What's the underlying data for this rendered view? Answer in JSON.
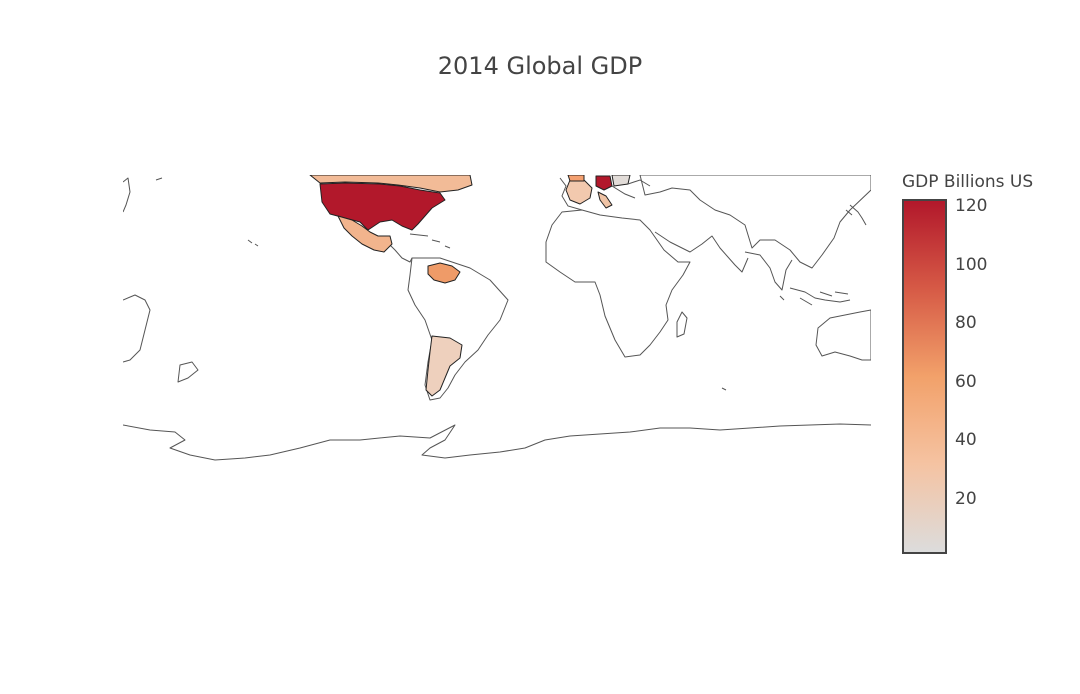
{
  "title": "2014 Global GDP",
  "colorbar": {
    "title": "GDP Billions US",
    "ticks": [
      "120",
      "100",
      "80",
      "60",
      "40",
      "20"
    ],
    "colorscale": [
      "#dcdcdc",
      "#f5c3a2",
      "#f2a16a",
      "#d65a46",
      "#b2182b"
    ]
  },
  "land_outline_color": "#555555",
  "highlight_outline_color": "#222222"
}
